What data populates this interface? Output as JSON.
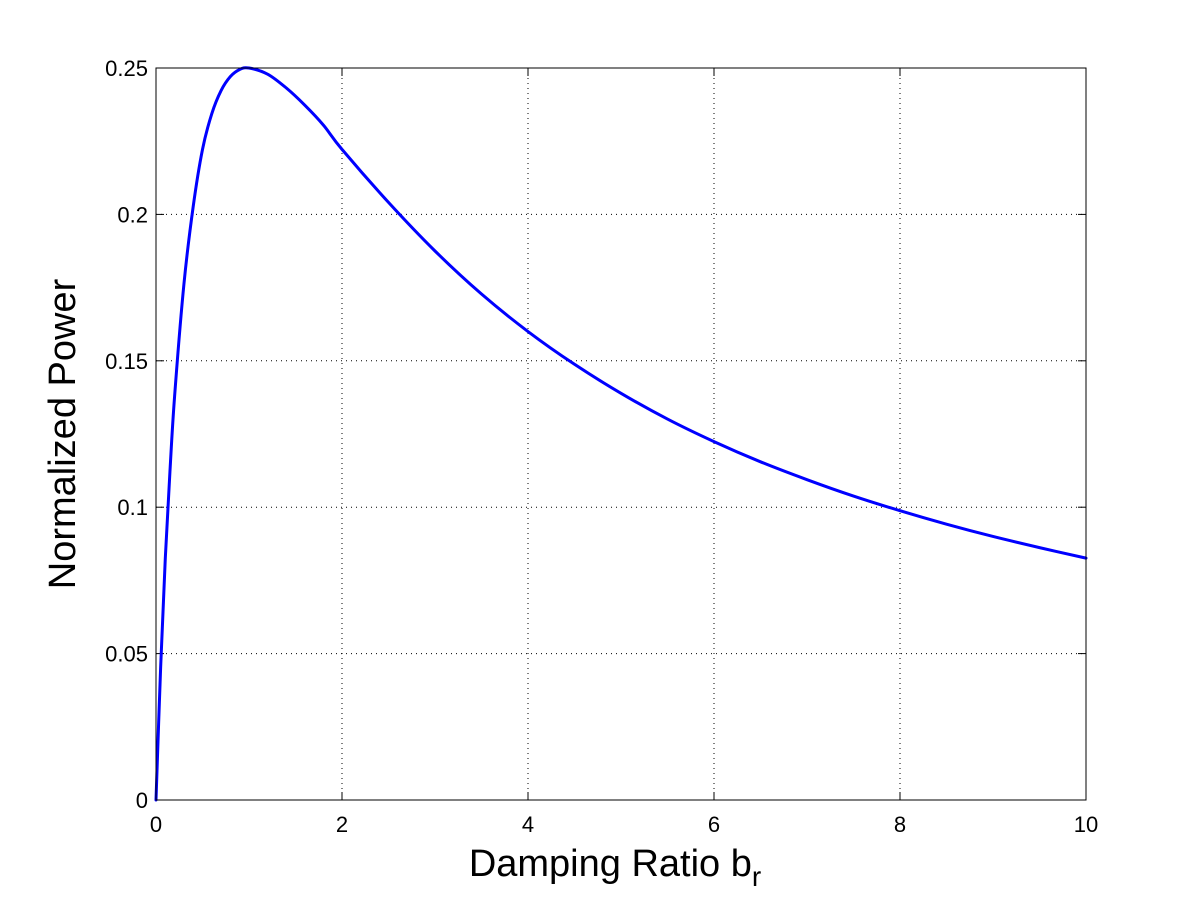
{
  "chart_data": {
    "type": "line",
    "title": "",
    "xlabel": "Damping Ratio b",
    "xlabel_subscript": "r",
    "ylabel": "Normalized Power",
    "xlim": [
      0,
      10
    ],
    "ylim": [
      0,
      0.25
    ],
    "x_ticks": [
      0,
      2,
      4,
      6,
      8,
      10
    ],
    "y_ticks": [
      0,
      0.05,
      0.1,
      0.15,
      0.2,
      0.25
    ],
    "x_tick_labels": [
      "0",
      "2",
      "4",
      "6",
      "8",
      "10"
    ],
    "y_tick_labels": [
      "0",
      "0.05",
      "0.1",
      "0.15",
      "0.2",
      "0.25"
    ],
    "grid": true,
    "series": [
      {
        "color": "#0000ff",
        "x": [
          0,
          0.05,
          0.1,
          0.15,
          0.2,
          0.3,
          0.4,
          0.5,
          0.6,
          0.7,
          0.8,
          0.9,
          1.0,
          1.2,
          1.4,
          1.6,
          1.8,
          2.0,
          2.5,
          3.0,
          3.5,
          4.0,
          4.5,
          5.0,
          5.5,
          6.0,
          6.5,
          7.0,
          7.5,
          8.0,
          8.5,
          9.0,
          9.5,
          10.0
        ],
        "y": [
          0,
          0.0454,
          0.0826,
          0.1122,
          0.1379,
          0.1761,
          0.2027,
          0.2222,
          0.2344,
          0.2423,
          0.2471,
          0.2495,
          0.25,
          0.2479,
          0.2432,
          0.2373,
          0.2305,
          0.2222,
          0.2041,
          0.1875,
          0.1728,
          0.16,
          0.1488,
          0.1389,
          0.1301,
          0.1224,
          0.1155,
          0.1094,
          0.1038,
          0.0988,
          0.0942,
          0.09,
          0.0862,
          0.0826
        ]
      }
    ]
  }
}
